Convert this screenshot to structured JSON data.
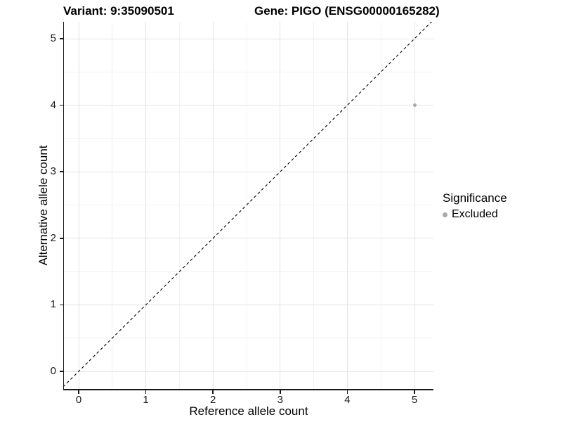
{
  "chart_data": {
    "type": "scatter",
    "title_left": "Variant: 9:35090501",
    "title_right": "Gene: PIGO (ENSG00000165282)",
    "xlabel": "Reference allele count",
    "ylabel": "Alternative allele count",
    "xlim": [
      -0.25,
      5.25
    ],
    "ylim": [
      -0.25,
      5.25
    ],
    "x_ticks": [
      0,
      1,
      2,
      3,
      4,
      5
    ],
    "y_ticks": [
      0,
      1,
      2,
      3,
      4,
      5
    ],
    "grid": "major and minor gridlines, white background, no top/right border",
    "reference_line": {
      "type": "identity y=x",
      "style": "dashed",
      "color": "#000000"
    },
    "series": [
      {
        "name": "Excluded",
        "color": "#a9a9a9",
        "points": [
          {
            "x": 5,
            "y": 4
          }
        ]
      }
    ],
    "legend": {
      "title": "Significance",
      "position": "right",
      "items": [
        {
          "label": "Excluded",
          "color": "#a9a9a9"
        }
      ]
    },
    "colors": {
      "point": "#a9a9a9",
      "grid_major": "#e4e4e4",
      "grid_minor": "#f2f2f2",
      "axis": "#1a1a1a",
      "reference_line": "#000000"
    }
  }
}
